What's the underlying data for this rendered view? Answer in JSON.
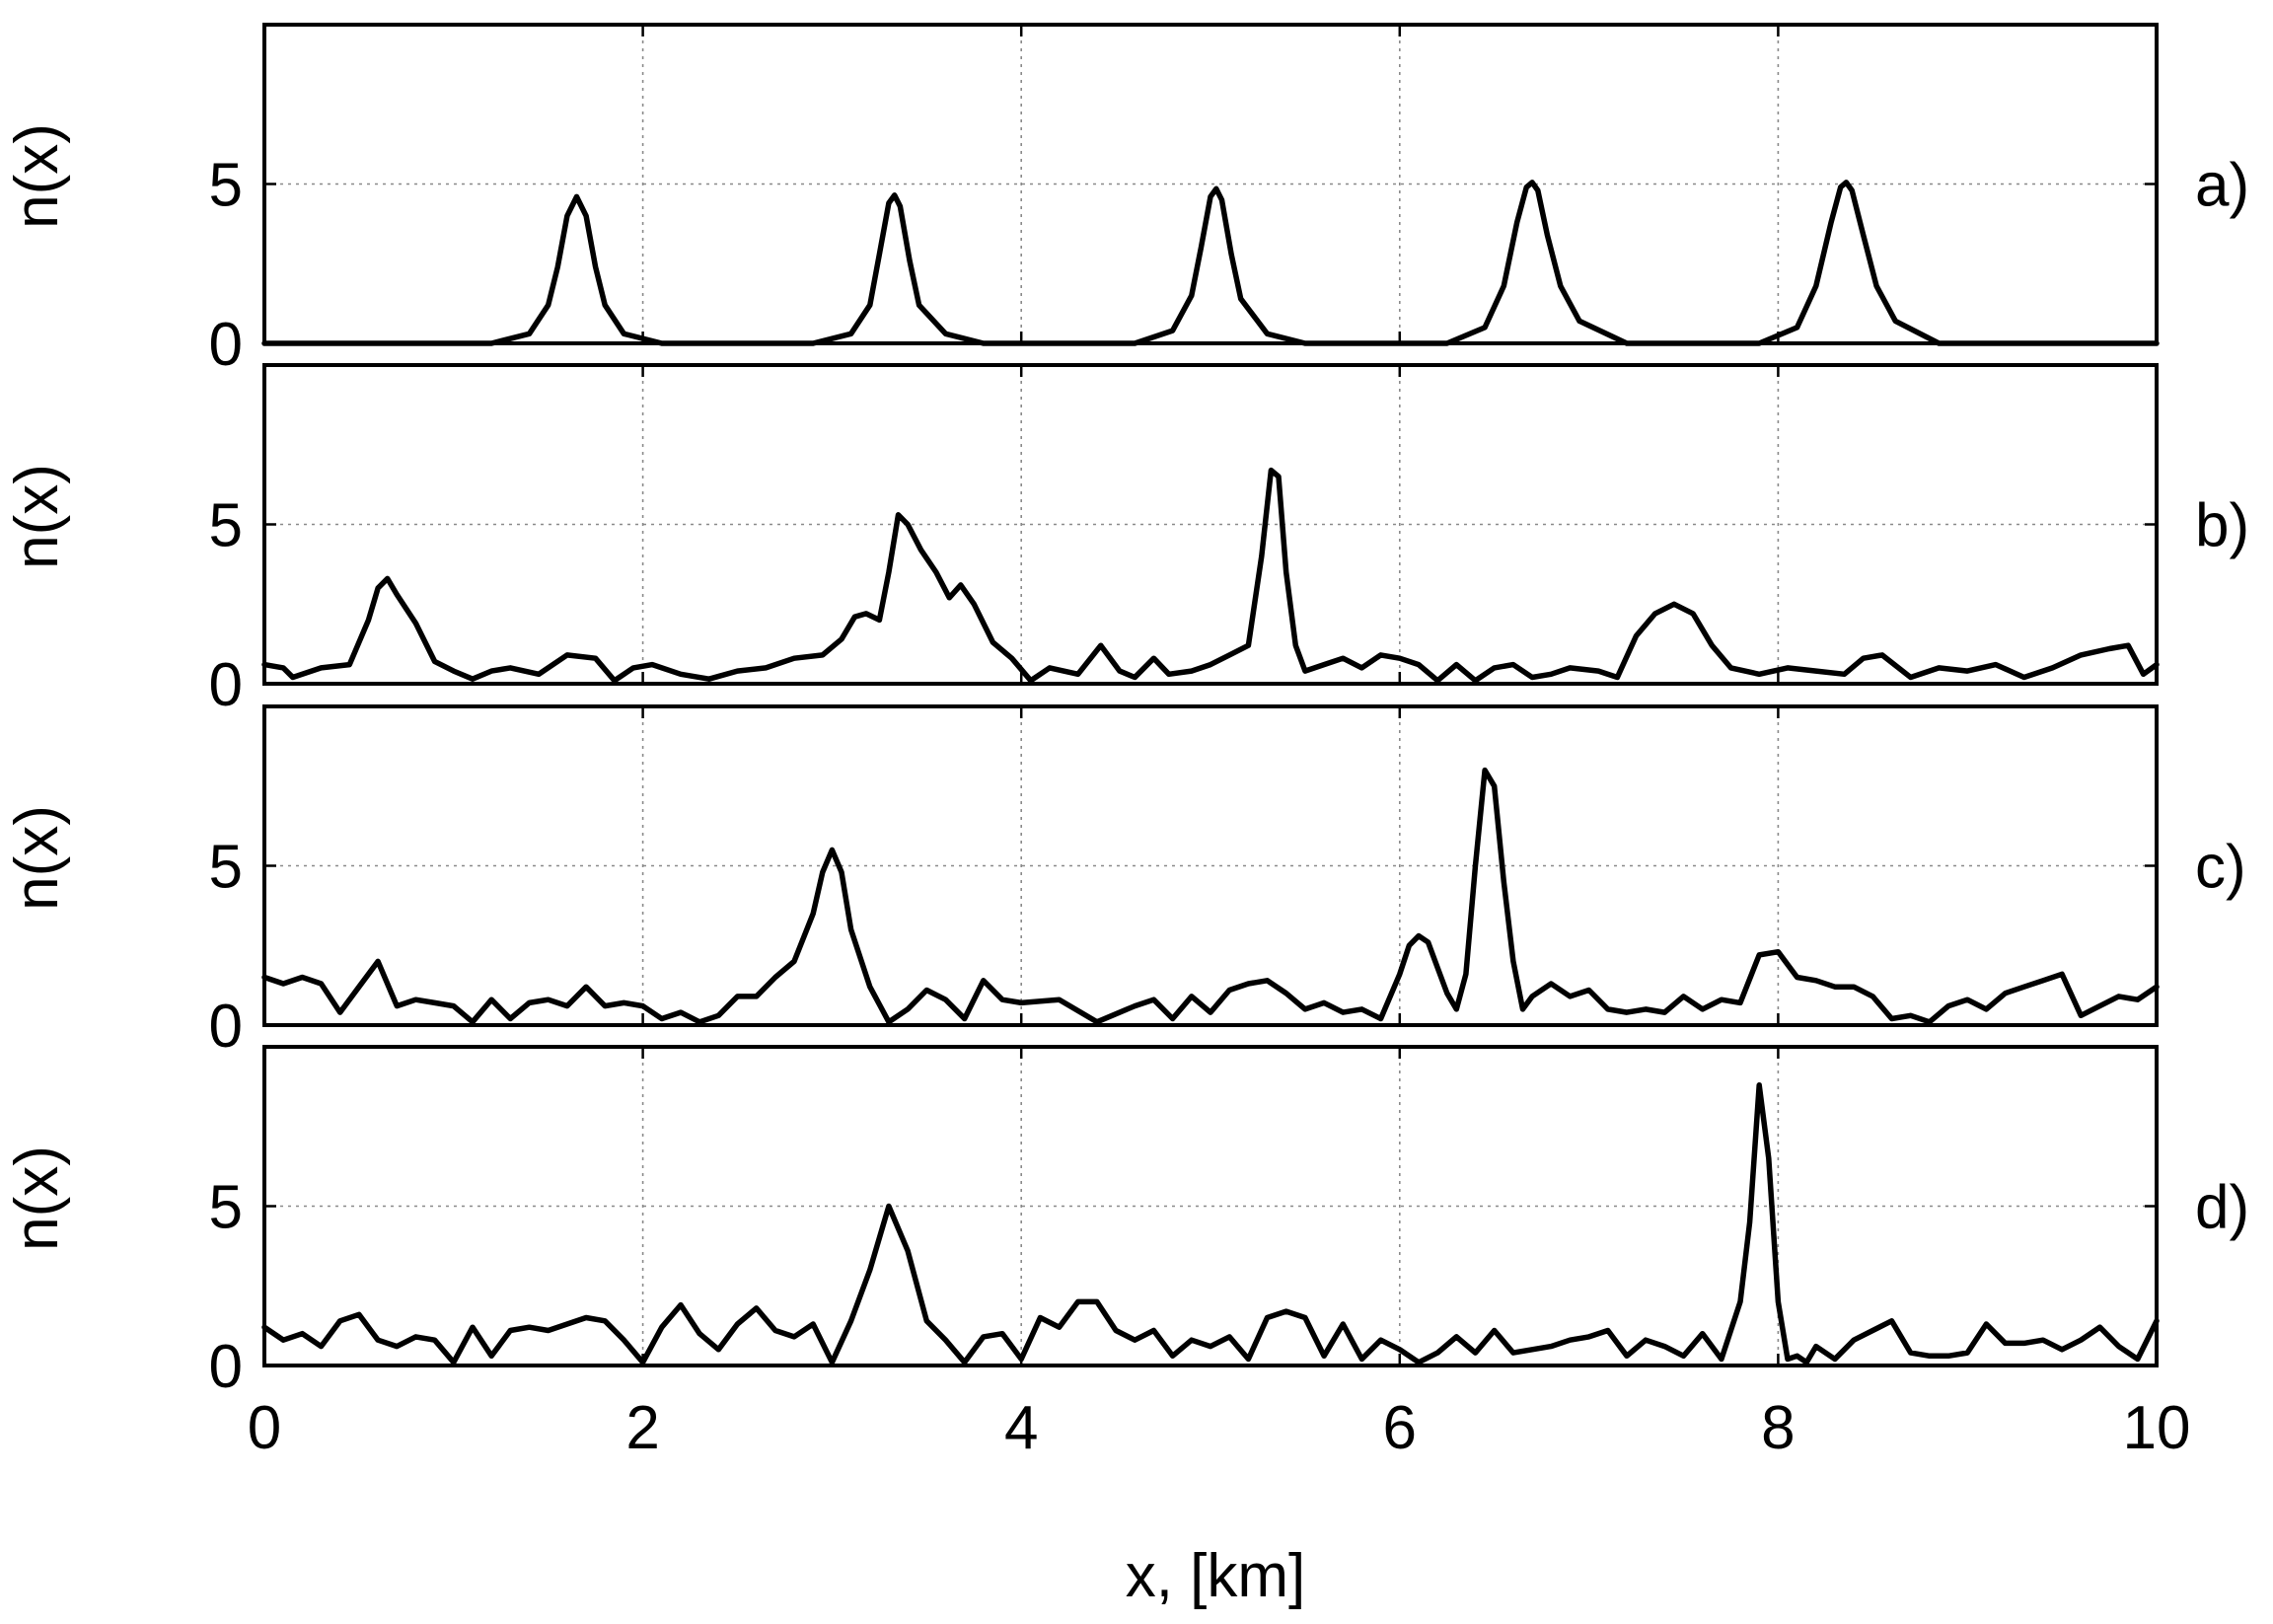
{
  "chart_data": {
    "type": "line",
    "layout": "4 stacked panels sharing the x axis",
    "xlabel": "x, [km]",
    "xlim": [
      0,
      10
    ],
    "xticks": [
      0,
      2,
      4,
      6,
      8,
      10
    ],
    "grid": true,
    "line_color": "#000000",
    "panels": [
      {
        "tag": "a)",
        "ylabel": "n(x)",
        "ylim": [
          0,
          10
        ],
        "yticks": [
          0,
          5
        ],
        "x": [
          0,
          1.2,
          1.4,
          1.5,
          1.55,
          1.6,
          1.65,
          1.7,
          1.75,
          1.8,
          1.9,
          2.1,
          2.9,
          3.1,
          3.2,
          3.25,
          3.3,
          3.33,
          3.36,
          3.41,
          3.46,
          3.6,
          3.8,
          4.6,
          4.8,
          4.9,
          4.95,
          5.0,
          5.03,
          5.06,
          5.11,
          5.16,
          5.3,
          5.5,
          6.25,
          6.45,
          6.55,
          6.62,
          6.67,
          6.7,
          6.73,
          6.78,
          6.85,
          6.95,
          7.2,
          7.9,
          8.1,
          8.2,
          8.28,
          8.33,
          8.36,
          8.39,
          8.45,
          8.52,
          8.62,
          8.85,
          10
        ],
        "y": [
          0,
          0,
          0.3,
          1.2,
          2.4,
          4.0,
          4.6,
          4.0,
          2.4,
          1.2,
          0.3,
          0,
          0,
          0.3,
          1.2,
          2.8,
          4.4,
          4.65,
          4.3,
          2.6,
          1.2,
          0.3,
          0,
          0,
          0.4,
          1.5,
          3.0,
          4.6,
          4.85,
          4.5,
          2.8,
          1.4,
          0.3,
          0,
          0,
          0.5,
          1.8,
          3.8,
          4.9,
          5.05,
          4.8,
          3.4,
          1.8,
          0.7,
          0,
          0,
          0.5,
          1.8,
          3.8,
          4.9,
          5.05,
          4.8,
          3.4,
          1.8,
          0.7,
          0,
          0
        ]
      },
      {
        "tag": "b)",
        "ylabel": "n(x)",
        "ylim": [
          0,
          10
        ],
        "yticks": [
          0,
          5
        ],
        "x": [
          0,
          0.1,
          0.15,
          0.3,
          0.45,
          0.55,
          0.6,
          0.65,
          0.7,
          0.8,
          0.9,
          1.0,
          1.1,
          1.2,
          1.3,
          1.45,
          1.6,
          1.75,
          1.85,
          1.95,
          2.05,
          2.2,
          2.35,
          2.5,
          2.65,
          2.8,
          2.95,
          3.05,
          3.12,
          3.18,
          3.25,
          3.3,
          3.35,
          3.4,
          3.47,
          3.55,
          3.62,
          3.68,
          3.75,
          3.85,
          3.95,
          4.05,
          4.15,
          4.3,
          4.42,
          4.52,
          4.6,
          4.7,
          4.78,
          4.9,
          5.0,
          5.1,
          5.2,
          5.27,
          5.32,
          5.36,
          5.4,
          5.45,
          5.5,
          5.6,
          5.7,
          5.8,
          5.9,
          6.0,
          6.1,
          6.2,
          6.3,
          6.4,
          6.5,
          6.6,
          6.7,
          6.8,
          6.9,
          7.05,
          7.15,
          7.25,
          7.35,
          7.45,
          7.55,
          7.65,
          7.75,
          7.9,
          8.05,
          8.2,
          8.35,
          8.45,
          8.55,
          8.7,
          8.85,
          9.0,
          9.15,
          9.3,
          9.45,
          9.6,
          9.75,
          9.85,
          9.93,
          10
        ],
        "y": [
          0.6,
          0.5,
          0.2,
          0.5,
          0.6,
          2.0,
          3.0,
          3.3,
          2.8,
          1.9,
          0.7,
          0.4,
          0.15,
          0.4,
          0.5,
          0.3,
          0.9,
          0.8,
          0.1,
          0.5,
          0.6,
          0.3,
          0.15,
          0.4,
          0.5,
          0.8,
          0.9,
          1.4,
          2.1,
          2.2,
          2.0,
          3.5,
          5.3,
          5.0,
          4.2,
          3.5,
          2.7,
          3.1,
          2.5,
          1.3,
          0.8,
          0.1,
          0.5,
          0.3,
          1.2,
          0.4,
          0.2,
          0.8,
          0.3,
          0.4,
          0.6,
          0.9,
          1.2,
          4.0,
          6.7,
          6.5,
          3.5,
          1.2,
          0.4,
          0.6,
          0.8,
          0.5,
          0.9,
          0.8,
          0.6,
          0.1,
          0.6,
          0.1,
          0.5,
          0.6,
          0.2,
          0.3,
          0.5,
          0.4,
          0.2,
          1.5,
          2.2,
          2.5,
          2.2,
          1.2,
          0.5,
          0.3,
          0.5,
          0.4,
          0.3,
          0.8,
          0.9,
          0.2,
          0.5,
          0.4,
          0.6,
          0.2,
          0.5,
          0.9,
          1.1,
          1.2,
          0.3,
          0.6
        ]
      },
      {
        "tag": "c)",
        "ylabel": "n(x)",
        "ylim": [
          0,
          10
        ],
        "yticks": [
          0,
          5
        ],
        "x": [
          0,
          0.1,
          0.2,
          0.3,
          0.4,
          0.5,
          0.6,
          0.7,
          0.8,
          0.9,
          1.0,
          1.1,
          1.2,
          1.3,
          1.4,
          1.5,
          1.6,
          1.7,
          1.8,
          1.9,
          2.0,
          2.1,
          2.2,
          2.3,
          2.4,
          2.5,
          2.6,
          2.7,
          2.8,
          2.9,
          2.95,
          3.0,
          3.05,
          3.1,
          3.2,
          3.3,
          3.4,
          3.5,
          3.6,
          3.7,
          3.8,
          3.9,
          4.0,
          4.2,
          4.4,
          4.6,
          4.7,
          4.8,
          4.9,
          5.0,
          5.1,
          5.2,
          5.3,
          5.4,
          5.5,
          5.6,
          5.7,
          5.8,
          5.9,
          6.0,
          6.05,
          6.1,
          6.15,
          6.2,
          6.25,
          6.3,
          6.35,
          6.4,
          6.45,
          6.5,
          6.55,
          6.6,
          6.65,
          6.7,
          6.8,
          6.9,
          7.0,
          7.1,
          7.2,
          7.3,
          7.4,
          7.5,
          7.6,
          7.7,
          7.8,
          7.9,
          8.0,
          8.1,
          8.2,
          8.3,
          8.4,
          8.5,
          8.6,
          8.7,
          8.8,
          8.9,
          9.0,
          9.1,
          9.2,
          9.3,
          9.4,
          9.5,
          9.6,
          9.7,
          9.8,
          9.9,
          10
        ],
        "y": [
          1.5,
          1.3,
          1.5,
          1.3,
          0.4,
          1.2,
          2.0,
          0.6,
          0.8,
          0.7,
          0.6,
          0.1,
          0.8,
          0.2,
          0.7,
          0.8,
          0.6,
          1.2,
          0.6,
          0.7,
          0.6,
          0.2,
          0.4,
          0.1,
          0.3,
          0.9,
          0.9,
          1.5,
          2.0,
          3.5,
          4.8,
          5.5,
          4.8,
          3.0,
          1.2,
          0.1,
          0.5,
          1.1,
          0.8,
          0.2,
          1.4,
          0.8,
          0.7,
          0.8,
          0.1,
          0.6,
          0.8,
          0.2,
          0.9,
          0.4,
          1.1,
          1.3,
          1.4,
          1.0,
          0.5,
          0.7,
          0.4,
          0.5,
          0.2,
          1.6,
          2.5,
          2.8,
          2.6,
          1.8,
          1.0,
          0.5,
          1.6,
          5.0,
          8.0,
          7.5,
          4.5,
          2.0,
          0.5,
          0.9,
          1.3,
          0.9,
          1.1,
          0.5,
          0.4,
          0.5,
          0.4,
          0.9,
          0.5,
          0.8,
          0.7,
          2.2,
          2.3,
          1.5,
          1.4,
          1.2,
          1.2,
          0.9,
          0.2,
          0.3,
          0.1,
          0.6,
          0.8,
          0.5,
          1.0,
          1.2,
          1.4,
          1.6,
          0.3,
          0.6,
          0.9,
          0.8,
          1.2
        ]
      },
      {
        "tag": "d)",
        "ylabel": "n(x)",
        "ylim": [
          0,
          10
        ],
        "yticks": [
          0,
          5
        ],
        "x": [
          0,
          0.1,
          0.2,
          0.3,
          0.4,
          0.5,
          0.6,
          0.7,
          0.8,
          0.9,
          1.0,
          1.1,
          1.2,
          1.3,
          1.4,
          1.5,
          1.6,
          1.7,
          1.8,
          1.9,
          2.0,
          2.1,
          2.2,
          2.3,
          2.4,
          2.5,
          2.6,
          2.7,
          2.8,
          2.9,
          3.0,
          3.1,
          3.2,
          3.3,
          3.4,
          3.5,
          3.6,
          3.7,
          3.8,
          3.9,
          4.0,
          4.1,
          4.2,
          4.3,
          4.4,
          4.5,
          4.6,
          4.7,
          4.8,
          4.9,
          5.0,
          5.1,
          5.2,
          5.3,
          5.4,
          5.5,
          5.6,
          5.7,
          5.8,
          5.9,
          6.0,
          6.1,
          6.2,
          6.3,
          6.4,
          6.5,
          6.6,
          6.7,
          6.8,
          6.9,
          7.0,
          7.1,
          7.2,
          7.3,
          7.4,
          7.5,
          7.6,
          7.7,
          7.8,
          7.85,
          7.9,
          7.95,
          8.0,
          8.05,
          8.1,
          8.15,
          8.2,
          8.3,
          8.4,
          8.5,
          8.6,
          8.7,
          8.8,
          8.9,
          9.0,
          9.1,
          9.2,
          9.3,
          9.4,
          9.5,
          9.6,
          9.7,
          9.8,
          9.9,
          10
        ],
        "y": [
          1.2,
          0.8,
          1.0,
          0.6,
          1.4,
          1.6,
          0.8,
          0.6,
          0.9,
          0.8,
          0.1,
          1.2,
          0.3,
          1.1,
          1.2,
          1.1,
          1.3,
          1.5,
          1.4,
          0.8,
          0.1,
          1.2,
          1.9,
          1.0,
          0.5,
          1.3,
          1.8,
          1.1,
          0.9,
          1.3,
          0.1,
          1.4,
          3.0,
          5.0,
          3.6,
          1.4,
          0.8,
          0.1,
          0.9,
          1.0,
          0.2,
          1.5,
          1.2,
          2.0,
          2.0,
          1.1,
          0.8,
          1.1,
          0.3,
          0.8,
          0.6,
          0.9,
          0.2,
          1.5,
          1.7,
          1.5,
          0.3,
          1.3,
          0.2,
          0.8,
          0.5,
          0.1,
          0.4,
          0.9,
          0.4,
          1.1,
          0.4,
          0.5,
          0.6,
          0.8,
          0.9,
          1.1,
          0.3,
          0.8,
          0.6,
          0.3,
          1.0,
          0.2,
          2.0,
          4.5,
          8.8,
          6.5,
          2.0,
          0.2,
          0.3,
          0.1,
          0.6,
          0.2,
          0.8,
          1.1,
          1.4,
          0.4,
          0.3,
          0.3,
          0.4,
          1.3,
          0.7,
          0.7,
          0.8,
          0.5,
          0.8,
          1.2,
          0.6,
          0.2,
          1.4
        ]
      }
    ]
  }
}
